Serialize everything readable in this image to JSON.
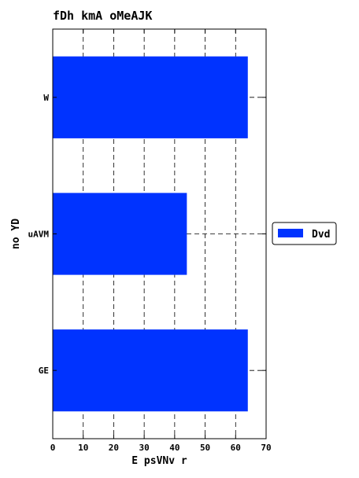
{
  "chart_data": {
    "type": "bar",
    "orientation": "horizontal",
    "title": "fDh kmA oMeAJK",
    "xlabel": "E psVNv r",
    "ylabel": "no YD",
    "categories": [
      "W",
      "uAVM",
      "GE"
    ],
    "series": [
      {
        "name": "Dvd",
        "values": [
          64,
          44,
          64
        ],
        "color": "#0033ff"
      }
    ],
    "xlim": [
      0,
      70
    ],
    "xticks": [
      0,
      10,
      20,
      30,
      40,
      50,
      60,
      70
    ],
    "grid": true,
    "legend_position": "right"
  }
}
